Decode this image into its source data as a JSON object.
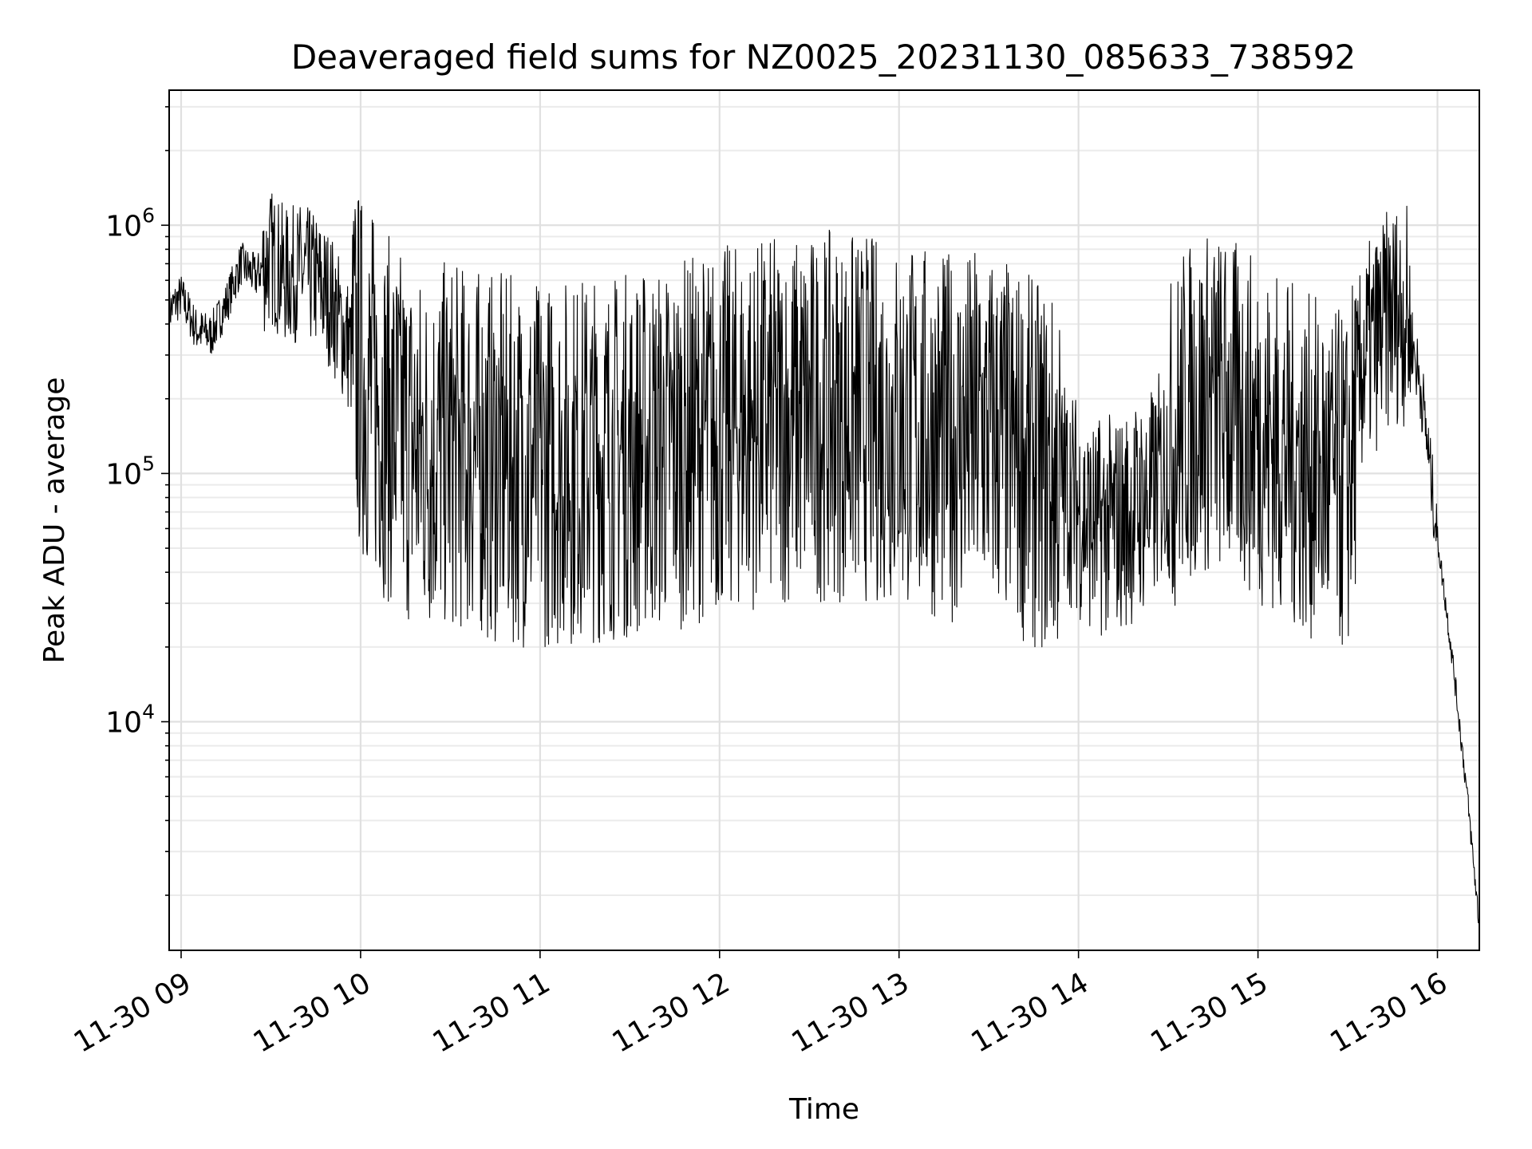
{
  "chart_data": {
    "type": "line",
    "title": "Deaveraged field sums for NZ0025_20231130_085633_738592",
    "xlabel": "Time",
    "ylabel": "Peak ADU - average",
    "xscale": "time",
    "yscale": "log",
    "xlim": [
      "2023-11-30 08:56",
      "2023-11-30 16:14"
    ],
    "ylim": [
      1200,
      3500000
    ],
    "grid": true,
    "legend": "none",
    "line_color": "#000000",
    "x_ticks": [
      "11-30 09",
      "11-30 10",
      "11-30 11",
      "11-30 12",
      "11-30 13",
      "11-30 14",
      "11-30 15",
      "11-30 16"
    ],
    "y_ticks": [
      {
        "base": "10",
        "exp": "4",
        "value": 10000
      },
      {
        "base": "10",
        "exp": "5",
        "value": 100000
      },
      {
        "base": "10",
        "exp": "6",
        "value": 1000000
      }
    ],
    "series": [
      {
        "x": [
          "2023-11-30 08:56",
          "2023-11-30 09:00",
          "2023-11-30 09:05",
          "2023-11-30 09:10",
          "2023-11-30 09:15",
          "2023-11-30 09:20",
          "2023-11-30 09:25",
          "2023-11-30 09:30",
          "2023-11-30 09:35",
          "2023-11-30 09:40",
          "2023-11-30 09:45",
          "2023-11-30 09:50",
          "2023-11-30 09:55",
          "2023-11-30 10:00",
          "2023-11-30 10:10",
          "2023-11-30 10:20",
          "2023-11-30 10:30",
          "2023-11-30 10:45",
          "2023-11-30 11:00",
          "2023-11-30 11:15",
          "2023-11-30 11:30",
          "2023-11-30 11:45",
          "2023-11-30 12:00",
          "2023-11-30 12:15",
          "2023-11-30 12:30",
          "2023-11-30 12:45",
          "2023-11-30 13:00",
          "2023-11-30 13:15",
          "2023-11-30 13:30",
          "2023-11-30 13:45",
          "2023-11-30 13:55",
          "2023-11-30 14:05",
          "2023-11-30 14:15",
          "2023-11-30 14:25",
          "2023-11-30 14:35",
          "2023-11-30 14:45",
          "2023-11-30 15:00",
          "2023-11-30 15:15",
          "2023-11-30 15:25",
          "2023-11-30 15:30",
          "2023-11-30 15:35",
          "2023-11-30 15:40",
          "2023-11-30 15:45",
          "2023-11-30 15:50",
          "2023-11-30 15:55",
          "2023-11-30 16:00",
          "2023-11-30 16:05",
          "2023-11-30 16:10",
          "2023-11-30 16:14"
        ],
        "y": [
          450000,
          520000,
          380000,
          360000,
          480000,
          700000,
          620000,
          750000,
          620000,
          650000,
          600000,
          500000,
          350000,
          250000,
          160000,
          120000,
          130000,
          115000,
          110000,
          115000,
          120000,
          130000,
          150000,
          160000,
          170000,
          170000,
          160000,
          140000,
          150000,
          110000,
          90000,
          60000,
          65000,
          80000,
          170000,
          200000,
          150000,
          110000,
          95000,
          90000,
          280000,
          350000,
          450000,
          430000,
          200000,
          55000,
          18000,
          5000,
          1500
        ]
      }
    ]
  }
}
